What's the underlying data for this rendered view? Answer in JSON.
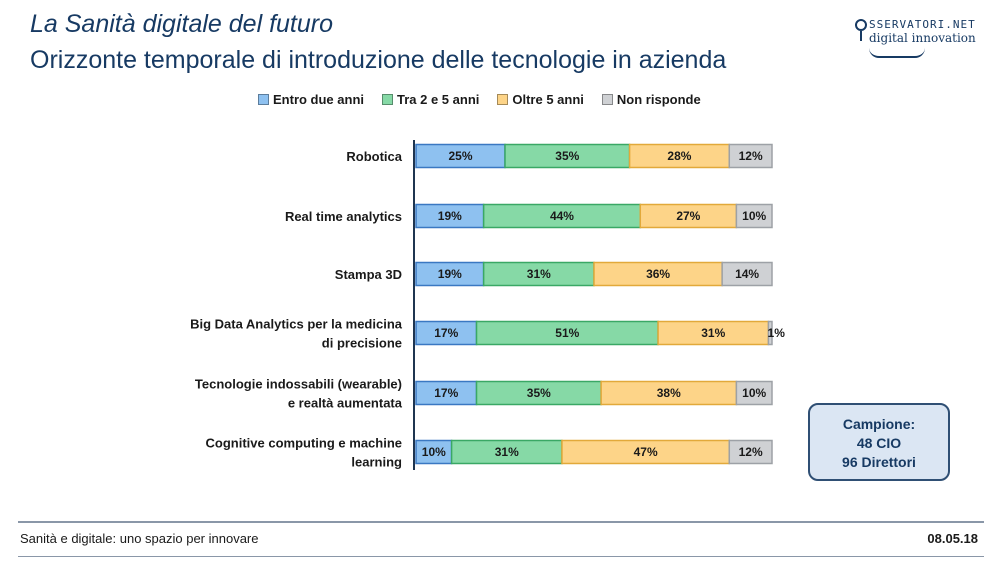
{
  "header": {
    "title_italic": "La Sanità digitale del futuro",
    "title_main": "Orizzonte temporale di introduzione delle tecnologie in azienda"
  },
  "logo": {
    "line1": "SSERVATORI.NET",
    "line2": "digital innovation"
  },
  "chart_data": {
    "type": "bar",
    "orientation": "horizontal",
    "stacked": true,
    "normalized": true,
    "categories": [
      [
        "Robotica"
      ],
      [
        "Real time analytics"
      ],
      [
        "Stampa 3D"
      ],
      [
        "Big Data Analytics per la medicina",
        "di precisione"
      ],
      [
        "Tecnologie indossabili (wearable)",
        "e realtà aumentata"
      ],
      [
        "Cognitive computing e machine",
        "learning"
      ]
    ],
    "series": [
      {
        "name": "Entro due anni",
        "color": "#8ec1f0",
        "values": [
          25,
          19,
          19,
          17,
          17,
          10
        ]
      },
      {
        "name": "Tra 2 e 5 anni",
        "color": "#86d9a6",
        "values": [
          35,
          44,
          31,
          51,
          35,
          31
        ]
      },
      {
        "name": "Oltre 5 anni",
        "color": "#fdd488",
        "values": [
          28,
          27,
          36,
          31,
          38,
          47
        ]
      },
      {
        "name": "Non risponde",
        "color": "#cfd1d4",
        "values": [
          12,
          10,
          14,
          1,
          10,
          12
        ]
      }
    ],
    "value_suffix": "%",
    "legend_position": "top"
  },
  "sample_box": {
    "line1": "Campione:",
    "line2": "48 CIO",
    "line3": "96 Direttori"
  },
  "footer": {
    "left": "Sanità e digitale: uno spazio per innovare",
    "right": "08.05.18"
  }
}
